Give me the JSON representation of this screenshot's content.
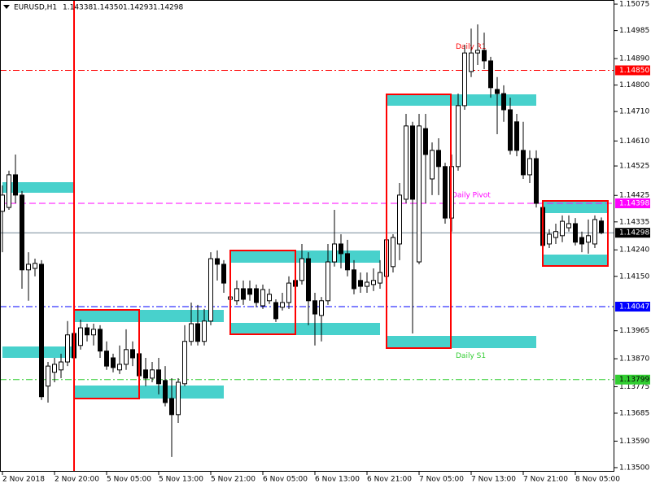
{
  "chart_data": {
    "type": "candlestick",
    "symbol": "EURUSD,H1",
    "ohlc_labels": [
      "1.14338",
      "1.14350",
      "1.14293",
      "1.14298"
    ],
    "categories": [
      "2 Nov 2018",
      null,
      null,
      null,
      null,
      null,
      null,
      null,
      "2 Nov 20:00",
      null,
      null,
      null,
      null,
      null,
      null,
      null,
      "5 Nov 05:00",
      null,
      null,
      null,
      null,
      null,
      null,
      null,
      "5 Nov 13:00",
      null,
      null,
      null,
      null,
      null,
      null,
      null,
      "5 Nov 21:00",
      null,
      null,
      null,
      null,
      null,
      null,
      null,
      "6 Nov 05:00",
      null,
      null,
      null,
      null,
      null,
      null,
      null,
      "6 Nov 13:00",
      null,
      null,
      null,
      null,
      null,
      null,
      null,
      "6 Nov 21:00",
      null,
      null,
      null,
      null,
      null,
      null,
      null,
      "7 Nov 05:00",
      null,
      null,
      null,
      null,
      null,
      null,
      null,
      "7 Nov 13:00",
      null,
      null,
      null,
      null,
      null,
      null,
      null,
      "7 Nov 21:00",
      null,
      null,
      null,
      null,
      null,
      null,
      null,
      "8 Nov 05:00",
      null,
      null,
      null,
      null
    ],
    "open": [
      1.14371,
      1.14384,
      1.14495,
      1.14426,
      1.14172,
      1.14177,
      1.14191,
      1.13777,
      1.13824,
      1.13832,
      1.13859,
      1.13956,
      1.13915,
      1.13975,
      1.13951,
      1.1397,
      1.13896,
      1.13873,
      1.13832,
      1.13851,
      1.13901,
      1.13887,
      1.13832,
      1.13804,
      1.13832,
      1.13796,
      1.13735,
      1.1368,
      1.13785,
      1.13929,
      1.13989,
      1.13929,
      1.13998,
      1.1421,
      1.14191,
      1.14072,
      1.14067,
      1.14108,
      1.14108,
      1.14108,
      1.1405,
      1.14067,
      1.14061,
      1.14045,
      1.14061,
      1.14136,
      1.14136,
      1.1421,
      1.14067,
      1.14017,
      1.14067,
      1.14199,
      1.1426,
      1.14227,
      1.14172,
      1.14136,
      1.14116,
      1.14122,
      1.14127,
      1.1415,
      1.14183,
      1.1426,
      1.14412,
      1.14661,
      1.14199,
      1.14652,
      1.14481,
      1.14578,
      1.14523,
      1.14348,
      1.14523,
      1.1473,
      1.14846,
      1.14909,
      1.14918,
      1.14882,
      1.14785,
      1.14771,
      1.14716,
      1.14675,
      1.14578,
      1.14495,
      1.1455,
      1.14384,
      1.1426,
      1.14282,
      1.14288,
      1.14315,
      1.14329,
      1.14282,
      1.14266,
      1.1426,
      1.14338
    ],
    "high": [
      1.14459,
      1.14509,
      1.14564,
      1.1444,
      1.14232,
      1.1421,
      1.14205,
      1.13859,
      1.13873,
      1.13887,
      1.13998,
      1.1397,
      1.14003,
      1.13989,
      1.13989,
      1.13984,
      1.13929,
      1.13887,
      1.13915,
      1.1397,
      1.13929,
      1.13901,
      1.13873,
      1.13859,
      1.13873,
      1.13845,
      1.13804,
      1.13804,
      1.13984,
      1.14061,
      1.14053,
      1.14039,
      1.14232,
      1.14238,
      1.14205,
      1.14136,
      1.14136,
      1.14136,
      1.14136,
      1.14122,
      1.14122,
      1.14108,
      1.14072,
      1.14094,
      1.1415,
      1.1415,
      1.1426,
      1.14232,
      1.14094,
      1.1408,
      1.1426,
      1.14376,
      1.14293,
      1.14274,
      1.14205,
      1.14163,
      1.14163,
      1.14177,
      1.14205,
      1.14288,
      1.14293,
      1.14467,
      1.14702,
      1.14675,
      1.14702,
      1.14702,
      1.14605,
      1.14619,
      1.14536,
      1.14564,
      1.14771,
      1.14937,
      1.14992,
      1.15006,
      1.14978,
      1.14896,
      1.14827,
      1.14799,
      1.14757,
      1.14702,
      1.14675,
      1.14578,
      1.14578,
      1.14398,
      1.1431,
      1.14329,
      1.14357,
      1.14357,
      1.14348,
      1.14302,
      1.14343,
      1.14357,
      1.1435
    ],
    "low": [
      1.14232,
      1.14376,
      1.14398,
      1.14108,
      1.14067,
      1.1415,
      1.1373,
      1.13721,
      1.1379,
      1.13804,
      1.13845,
      1.13859,
      1.13901,
      1.13929,
      1.13915,
      1.13873,
      1.13832,
      1.13824,
      1.13818,
      1.13832,
      1.13845,
      1.1379,
      1.13777,
      1.1379,
      1.13749,
      1.13708,
      1.13536,
      1.13652,
      1.13777,
      1.13915,
      1.13915,
      1.13915,
      1.13984,
      1.14136,
      1.14094,
      1.14061,
      1.14053,
      1.14053,
      1.14067,
      1.14045,
      1.14039,
      1.14056,
      1.13995,
      1.14034,
      1.14039,
      1.14067,
      1.14122,
      1.13984,
      1.13915,
      1.13929,
      1.14053,
      1.14183,
      1.14177,
      1.1415,
      1.14089,
      1.14094,
      1.14094,
      1.141,
      1.14108,
      1.14136,
      1.14163,
      1.14205,
      1.14398,
      1.13956,
      1.14191,
      1.14398,
      1.14426,
      1.14426,
      1.14329,
      1.14302,
      1.14509,
      1.14716,
      1.14827,
      1.14868,
      1.14854,
      1.14757,
      1.14633,
      1.14675,
      1.14564,
      1.14558,
      1.14481,
      1.14467,
      1.14384,
      1.14246,
      1.14246,
      1.1426,
      1.14266,
      1.14302,
      1.14255,
      1.14232,
      1.14227,
      1.14246,
      1.14293
    ],
    "close": [
      1.14426,
      1.14495,
      1.14426,
      1.14172,
      1.14191,
      1.14194,
      1.13741,
      1.13845,
      1.13851,
      1.13859,
      1.13951,
      1.13873,
      1.13975,
      1.13951,
      1.1397,
      1.13896,
      1.13845,
      1.1384,
      1.13851,
      1.13901,
      1.13873,
      1.13812,
      1.13804,
      1.13832,
      1.13785,
      1.13721,
      1.1368,
      1.1379,
      1.13929,
      1.13989,
      1.13929,
      1.13998,
      1.1421,
      1.14191,
      1.14127,
      1.1408,
      1.14108,
      1.14072,
      1.14089,
      1.14061,
      1.14105,
      1.14089,
      1.14006,
      1.14061,
      1.14127,
      1.14116,
      1.1421,
      1.14067,
      1.14022,
      1.14067,
      1.14199,
      1.1426,
      1.14227,
      1.14172,
      1.14108,
      1.14116,
      1.1413,
      1.14136,
      1.14163,
      1.14274,
      1.14282,
      1.14426,
      1.14661,
      1.14412,
      1.14661,
      1.14564,
      1.14578,
      1.14523,
      1.14348,
      1.14523,
      1.1473,
      1.14909,
      1.14909,
      1.14918,
      1.14882,
      1.14791,
      1.14771,
      1.14716,
      1.14578,
      1.14578,
      1.14495,
      1.1455,
      1.14398,
      1.14255,
      1.14293,
      1.14302,
      1.14337,
      1.14329,
      1.14266,
      1.1426,
      1.14288,
      1.14343,
      1.14298
    ],
    "up_color": "#ffffff",
    "down_color": "#000000",
    "ylim": [
      1.13486,
      1.15089
    ],
    "yticks": [
      1.15075,
      1.14985,
      {
        "value": 1.1489,
        "label": "1.14890"
      },
      {
        "value": 1.148,
        "label": "1.14800"
      },
      {
        "value": 1.1471,
        "label": "1.14710"
      },
      {
        "value": 1.1461,
        "label": "1.14610"
      },
      1.14525,
      1.14425,
      1.14335,
      {
        "value": 1.1424,
        "label": "1.14240"
      },
      {
        "value": 1.1415,
        "label": "1.14150"
      },
      1.13965,
      {
        "value": 1.1387,
        "label": "1.13870"
      },
      1.13775,
      1.13685,
      {
        "value": 1.1359,
        "label": "1.13590"
      },
      {
        "value": 1.135,
        "label": "1.13500"
      }
    ],
    "levels": [
      {
        "value": 1.1485,
        "label": "1.14850",
        "color": "#ff0000",
        "name": "Daily R1"
      },
      {
        "value": 1.14398,
        "label": "1.14398",
        "color": "#ff00ff",
        "name": "Daily Pivot"
      },
      {
        "value": 1.14298,
        "label": "1.14298",
        "color": "#000000"
      },
      {
        "value": 1.14047,
        "label": "1.14047",
        "color": "#0000ff"
      },
      {
        "value": 1.13799,
        "label": "1.13799",
        "color": "#32cd32",
        "name": "Daily S1"
      }
    ]
  }
}
